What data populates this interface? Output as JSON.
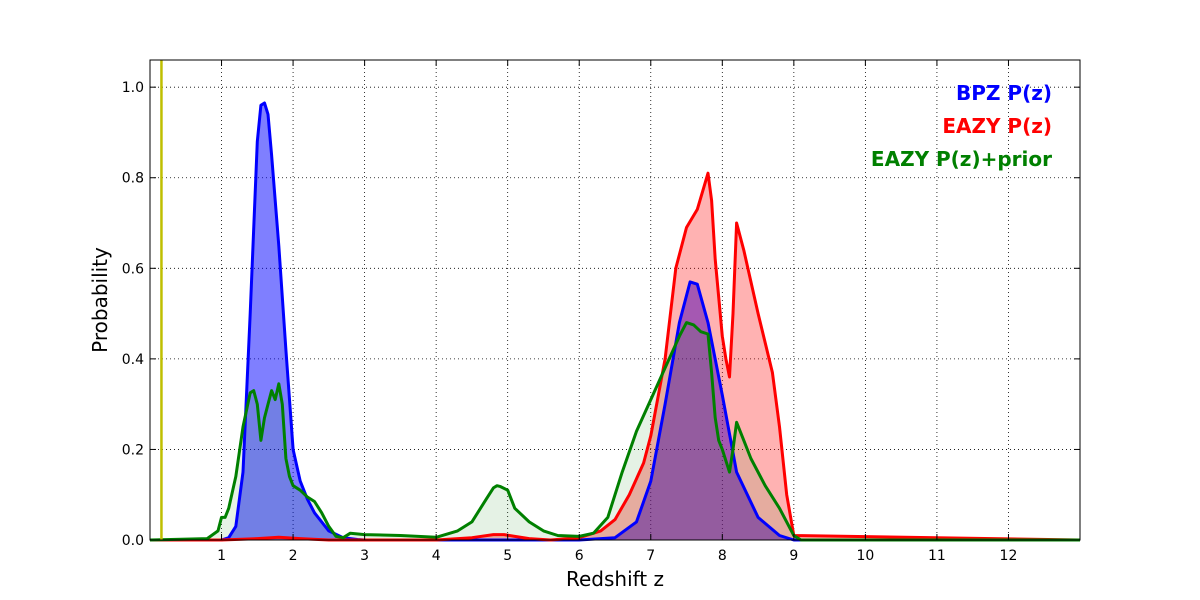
{
  "chart_data": {
    "type": "area",
    "xlabel": "Redshift z",
    "ylabel": "Probability",
    "xlim": [
      0,
      13
    ],
    "ylim": [
      0,
      1.06
    ],
    "xticks": [
      1,
      2,
      3,
      4,
      5,
      6,
      7,
      8,
      9,
      10,
      11,
      12
    ],
    "yticks": [
      0.0,
      0.2,
      0.4,
      0.6,
      0.8,
      1.0
    ],
    "ytick_labels": [
      "0.0",
      "0.2",
      "0.4",
      "0.6",
      "0.8",
      "1.0"
    ],
    "grid": true,
    "legend_position": "top-right",
    "vline": {
      "x": 0.16,
      "color": "#bfbf00"
    },
    "series": [
      {
        "name": "BPZ P(z)",
        "color": "#0000ff",
        "fill": "#0000ff",
        "fill_opacity": 0.5,
        "x": [
          0,
          1.0,
          1.1,
          1.2,
          1.3,
          1.4,
          1.5,
          1.55,
          1.6,
          1.65,
          1.7,
          1.8,
          1.9,
          2.0,
          2.1,
          2.2,
          2.3,
          2.5,
          2.7,
          2.9,
          3.0,
          6.0,
          6.5,
          6.8,
          7.0,
          7.2,
          7.4,
          7.55,
          7.65,
          7.8,
          8.0,
          8.2,
          8.5,
          8.8,
          9.0,
          13.0
        ],
        "y": [
          0,
          0,
          0.005,
          0.03,
          0.15,
          0.5,
          0.88,
          0.96,
          0.965,
          0.94,
          0.85,
          0.65,
          0.42,
          0.2,
          0.13,
          0.09,
          0.06,
          0.02,
          0.005,
          0.001,
          0,
          0,
          0.005,
          0.04,
          0.13,
          0.3,
          0.48,
          0.57,
          0.565,
          0.48,
          0.32,
          0.15,
          0.05,
          0.01,
          0,
          0
        ]
      },
      {
        "name": "EAZY P(z)",
        "color": "#ff0000",
        "fill": "#ff0000",
        "fill_opacity": 0.3,
        "x": [
          0,
          1.0,
          1.5,
          1.8,
          2.1,
          2.5,
          3.0,
          4.0,
          4.5,
          4.8,
          4.95,
          5.1,
          5.3,
          5.6,
          6.0,
          6.3,
          6.5,
          6.7,
          6.9,
          7.0,
          7.2,
          7.35,
          7.5,
          7.65,
          7.8,
          7.85,
          7.9,
          8.0,
          8.05,
          8.1,
          8.15,
          8.2,
          8.3,
          8.5,
          8.7,
          8.8,
          8.9,
          9.0,
          13.0
        ],
        "y": [
          0,
          0,
          0.003,
          0.006,
          0.003,
          0,
          0,
          0,
          0.005,
          0.012,
          0.012,
          0.008,
          0.003,
          0,
          0.005,
          0.02,
          0.045,
          0.1,
          0.17,
          0.23,
          0.4,
          0.6,
          0.69,
          0.73,
          0.81,
          0.75,
          0.62,
          0.45,
          0.4,
          0.36,
          0.5,
          0.7,
          0.64,
          0.5,
          0.37,
          0.25,
          0.1,
          0.01,
          0
        ]
      },
      {
        "name": "EAZY P(z)+prior",
        "color": "#008000",
        "fill": "#008000",
        "fill_opacity": 0.1,
        "x": [
          0,
          0.8,
          0.95,
          1.0,
          1.05,
          1.1,
          1.2,
          1.3,
          1.4,
          1.45,
          1.5,
          1.55,
          1.6,
          1.65,
          1.7,
          1.75,
          1.8,
          1.85,
          1.9,
          1.95,
          2.0,
          2.1,
          2.2,
          2.3,
          2.4,
          2.5,
          2.6,
          2.7,
          2.8,
          3.0,
          3.5,
          4.0,
          4.3,
          4.5,
          4.7,
          4.8,
          4.85,
          4.9,
          5.0,
          5.1,
          5.3,
          5.5,
          5.7,
          6.0,
          6.2,
          6.4,
          6.6,
          6.8,
          7.0,
          7.2,
          7.4,
          7.5,
          7.6,
          7.7,
          7.8,
          7.85,
          7.9,
          7.95,
          8.0,
          8.1,
          8.15,
          8.2,
          8.3,
          8.4,
          8.6,
          8.8,
          9.0,
          9.1,
          13.0
        ],
        "y": [
          0,
          0.003,
          0.02,
          0.05,
          0.05,
          0.07,
          0.14,
          0.25,
          0.325,
          0.33,
          0.3,
          0.22,
          0.27,
          0.3,
          0.33,
          0.31,
          0.345,
          0.3,
          0.18,
          0.14,
          0.12,
          0.11,
          0.095,
          0.085,
          0.06,
          0.03,
          0.008,
          0.005,
          0.015,
          0.012,
          0.01,
          0.006,
          0.02,
          0.04,
          0.09,
          0.115,
          0.12,
          0.118,
          0.11,
          0.07,
          0.04,
          0.02,
          0.01,
          0.008,
          0.015,
          0.05,
          0.15,
          0.24,
          0.31,
          0.38,
          0.45,
          0.48,
          0.475,
          0.46,
          0.455,
          0.37,
          0.27,
          0.22,
          0.2,
          0.15,
          0.2,
          0.26,
          0.22,
          0.18,
          0.12,
          0.07,
          0.01,
          0,
          0
        ]
      }
    ],
    "legend": [
      {
        "label": "BPZ P(z)",
        "color": "#0000ff"
      },
      {
        "label": "EAZY P(z)",
        "color": "#ff0000"
      },
      {
        "label": "EAZY P(z)+prior",
        "color": "#008000"
      }
    ]
  }
}
